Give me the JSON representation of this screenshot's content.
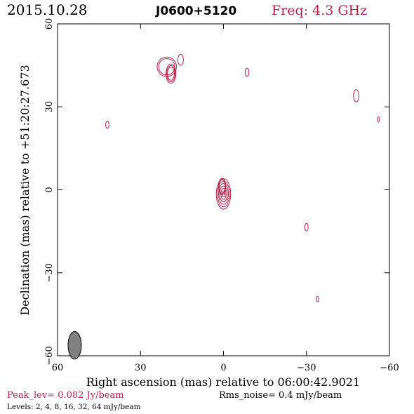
{
  "header": {
    "date": "2015.10.28",
    "source": "J0600+5120",
    "freq": "Freq: 4.3 GHz"
  },
  "footer": {
    "peak": "Peak_lev=  0.082 Jy/beam",
    "rms": "Rms_noise=   0.4 mJy/beam",
    "levels": "Levels:   2,    4,    8,   16,   32,   64 mJy/beam"
  },
  "colors": {
    "contour": "#b5254b",
    "accent": "#b5254b",
    "frame": "#000000",
    "beam_fill": "#808080"
  },
  "chart_data": {
    "type": "contour",
    "xlabel": "Right ascension (mas) relative to 06:00:42.9021",
    "ylabel": "Declination (mas) relative to +51:20:27.673",
    "xlim": [
      60,
      -60
    ],
    "ylim": [
      -60,
      60
    ],
    "xticks": [
      60,
      30,
      0,
      -30,
      -60
    ],
    "xtick_labels": [
      "60",
      "30",
      "0",
      "−30",
      "−60"
    ],
    "yticks": [
      60,
      30,
      0,
      -30,
      -60
    ],
    "ytick_labels": [
      "60",
      "30",
      "0",
      "−30",
      "−60"
    ],
    "contour_levels_mJy": [
      2,
      4,
      8,
      16,
      32,
      64
    ],
    "peak_Jy_per_beam": 0.082,
    "rms_noise_mJy_per_beam": 0.4,
    "beam": {
      "x": 53.8,
      "y": -56.2,
      "major": 5.0,
      "minor": 2.4,
      "pa_deg": 0
    },
    "components": [
      {
        "x": 0.0,
        "y": -1.5,
        "a": 2.6,
        "b": 5.5,
        "levels": 6,
        "orientation": "vertical"
      },
      {
        "x": 0.5,
        "y": 1.2,
        "a": 1.3,
        "b": 3.0,
        "levels": 2,
        "orientation": "vertical"
      },
      {
        "x": 19.0,
        "y": 42.0,
        "a": 1.8,
        "b": 3.5,
        "levels": 3,
        "orientation": "vertical"
      },
      {
        "x": 20.5,
        "y": 44.5,
        "a": 3.5,
        "b": 3.5,
        "levels": 2,
        "orientation": "round"
      },
      {
        "x": 15.5,
        "y": 47.0,
        "a": 1.0,
        "b": 2.0,
        "levels": 1,
        "orientation": "vertical"
      },
      {
        "x": 42.0,
        "y": 23.5,
        "a": 0.6,
        "b": 1.3,
        "levels": 1,
        "orientation": "vertical"
      },
      {
        "x": -8.5,
        "y": 42.5,
        "a": 0.7,
        "b": 1.5,
        "levels": 1,
        "orientation": "vertical"
      },
      {
        "x": -48.0,
        "y": 34.0,
        "a": 1.0,
        "b": 2.2,
        "levels": 1,
        "orientation": "vertical"
      },
      {
        "x": -56.0,
        "y": 25.5,
        "a": 0.4,
        "b": 0.9,
        "levels": 1,
        "orientation": "vertical"
      },
      {
        "x": -30.0,
        "y": -13.5,
        "a": 0.6,
        "b": 1.4,
        "levels": 1,
        "orientation": "vertical"
      },
      {
        "x": -34.0,
        "y": -39.5,
        "a": 0.4,
        "b": 1.0,
        "levels": 1,
        "orientation": "vertical"
      }
    ]
  }
}
